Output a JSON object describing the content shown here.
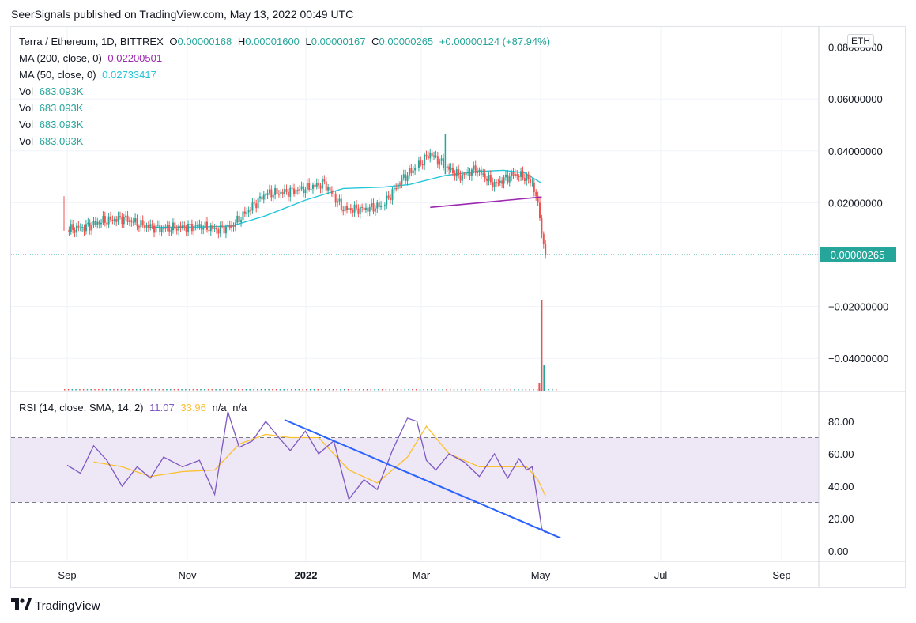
{
  "header": {
    "published": "SeerSignals published on TradingView.com, May 13, 2022 00:49 UTC"
  },
  "legend": {
    "pair": "Terra / Ethereum, 1D, BITTREX",
    "o_label": "O",
    "o_val": "0.00000168",
    "h_label": "H",
    "h_val": "0.00001600",
    "l_label": "L",
    "l_val": "0.00000167",
    "c_label": "C",
    "c_val": "0.00000265",
    "change": "+0.00000124 (+87.94%)",
    "ma200_label": "MA (200, close, 0)",
    "ma200_val": "0.02200501",
    "ma50_label": "MA (50, close, 0)",
    "ma50_val": "0.02733417",
    "vol_rows": [
      {
        "label": "Vol",
        "val": "683.093K"
      },
      {
        "label": "Vol",
        "val": "683.093K"
      },
      {
        "label": "Vol",
        "val": "683.093K"
      },
      {
        "label": "Vol",
        "val": "683.093K"
      }
    ]
  },
  "rsi_legend": {
    "label": "RSI (14, close, SMA, 14, 2)",
    "rsi_val": "11.07",
    "sma_val": "33.96",
    "na1": "n/a",
    "na2": "n/a"
  },
  "currency_badge": "ETH",
  "last_price_label": "0.00000265",
  "footer": {
    "brand": "TradingView"
  },
  "colors": {
    "up": "#26a69a",
    "down": "#ef5350",
    "ma200": "#9c27b0",
    "ma50": "#26c6da",
    "rsi": "#7e57c2",
    "rsi_sma": "#fbc02d",
    "trendline": "#2962ff",
    "band": "#ede7f6"
  },
  "chart_data": [
    {
      "type": "candlestick",
      "title": "Terra / Ethereum, 1D, BITTREX",
      "x_ticks": [
        "Sep",
        "Nov",
        "2022",
        "Mar",
        "May",
        "Jul",
        "Sep"
      ],
      "y_ticks": [
        "0.06000000",
        "0.04000000",
        "0.02000000",
        "−0.02000000",
        "−0.04000000"
      ],
      "y_top_partial": "0.08000000",
      "ylim": [
        -0.052,
        0.084
      ],
      "close_series": {
        "x": [
          "2021-09-01",
          "2021-09-10",
          "2021-09-20",
          "2021-10-01",
          "2021-10-10",
          "2021-10-20",
          "2021-11-01",
          "2021-11-10",
          "2021-11-20",
          "2021-11-27",
          "2021-12-05",
          "2021-12-15",
          "2021-12-25",
          "2022-01-05",
          "2022-01-15",
          "2022-01-25",
          "2022-02-05",
          "2022-02-15",
          "2022-02-25",
          "2022-03-05",
          "2022-03-12",
          "2022-03-20",
          "2022-03-28",
          "2022-04-05",
          "2022-04-15",
          "2022-04-25",
          "2022-05-01",
          "2022-05-05",
          "2022-05-08",
          "2022-05-10",
          "2022-05-12"
        ],
        "y": [
          0.0095,
          0.0105,
          0.013,
          0.014,
          0.0115,
          0.01,
          0.0105,
          0.011,
          0.0095,
          0.011,
          0.0165,
          0.0235,
          0.024,
          0.0255,
          0.0275,
          0.0175,
          0.0175,
          0.019,
          0.029,
          0.034,
          0.039,
          0.034,
          0.03,
          0.033,
          0.027,
          0.031,
          0.03,
          0.0275,
          0.02,
          0.008,
          2.7e-06
        ]
      },
      "spike_high": {
        "x": "2022-03-20",
        "y": 0.0465
      },
      "series": [
        {
          "name": "MA (200, close, 0)",
          "x": [
            "2022-03-12",
            "2022-05-10"
          ],
          "y": [
            0.0182,
            0.0222
          ]
        },
        {
          "name": "MA (50, close, 0)",
          "x": [
            "2021-10-15",
            "2021-11-10",
            "2021-11-27",
            "2021-12-15",
            "2022-01-05",
            "2022-01-25",
            "2022-02-15",
            "2022-03-01",
            "2022-03-20",
            "2022-04-05",
            "2022-04-20",
            "2022-05-01",
            "2022-05-10"
          ],
          "y": [
            0.0105,
            0.0106,
            0.011,
            0.015,
            0.021,
            0.0255,
            0.026,
            0.027,
            0.0305,
            0.032,
            0.0325,
            0.0315,
            0.0275
          ]
        }
      ],
      "volume": {
        "spike_x": "2022-05-10",
        "spike_note": "Vol 683.093K"
      }
    },
    {
      "type": "line",
      "title": "RSI (14, close, SMA, 14, 2)",
      "y_ticks": [
        "80.00",
        "60.00",
        "40.00",
        "20.00",
        "0.00"
      ],
      "ylim": [
        -2,
        87
      ],
      "bands": [
        70,
        50,
        30
      ],
      "series": [
        {
          "name": "RSI",
          "x": [
            "2021-09-01",
            "2021-09-08",
            "2021-09-15",
            "2021-09-22",
            "2021-09-30",
            "2021-10-08",
            "2021-10-15",
            "2021-10-22",
            "2021-11-01",
            "2021-11-10",
            "2021-11-18",
            "2021-11-25",
            "2021-12-01",
            "2021-12-08",
            "2021-12-15",
            "2021-12-22",
            "2021-12-28",
            "2022-01-05",
            "2022-01-12",
            "2022-01-20",
            "2022-01-28",
            "2022-02-05",
            "2022-02-12",
            "2022-02-20",
            "2022-02-28",
            "2022-03-05",
            "2022-03-10",
            "2022-03-15",
            "2022-03-22",
            "2022-03-30",
            "2022-04-07",
            "2022-04-15",
            "2022-04-22",
            "2022-04-28",
            "2022-05-02",
            "2022-05-05",
            "2022-05-08",
            "2022-05-10",
            "2022-05-12"
          ],
          "y": [
            53,
            48,
            65,
            56,
            40,
            52,
            45,
            58,
            52,
            56,
            35,
            86,
            64,
            68,
            80,
            70,
            62,
            74,
            60,
            68,
            32,
            44,
            38,
            62,
            82,
            80,
            56,
            50,
            60,
            55,
            46,
            60,
            45,
            57,
            50,
            52,
            30,
            14,
            11.07
          ]
        },
        {
          "name": "RSI-based MA",
          "x": [
            "2021-09-15",
            "2021-09-30",
            "2021-10-15",
            "2021-11-01",
            "2021-11-18",
            "2021-12-01",
            "2021-12-15",
            "2021-12-28",
            "2022-01-12",
            "2022-01-28",
            "2022-02-12",
            "2022-02-28",
            "2022-03-10",
            "2022-03-22",
            "2022-04-07",
            "2022-04-22",
            "2022-05-02",
            "2022-05-08",
            "2022-05-12"
          ],
          "y": [
            55,
            52,
            46,
            49,
            50,
            66,
            72,
            70,
            70,
            50,
            42,
            58,
            77,
            60,
            52,
            52,
            52,
            44,
            33.96
          ]
        },
        {
          "name": "trendline",
          "x": [
            "2021-12-25",
            "2022-05-20"
          ],
          "y": [
            81,
            8
          ]
        }
      ]
    }
  ]
}
